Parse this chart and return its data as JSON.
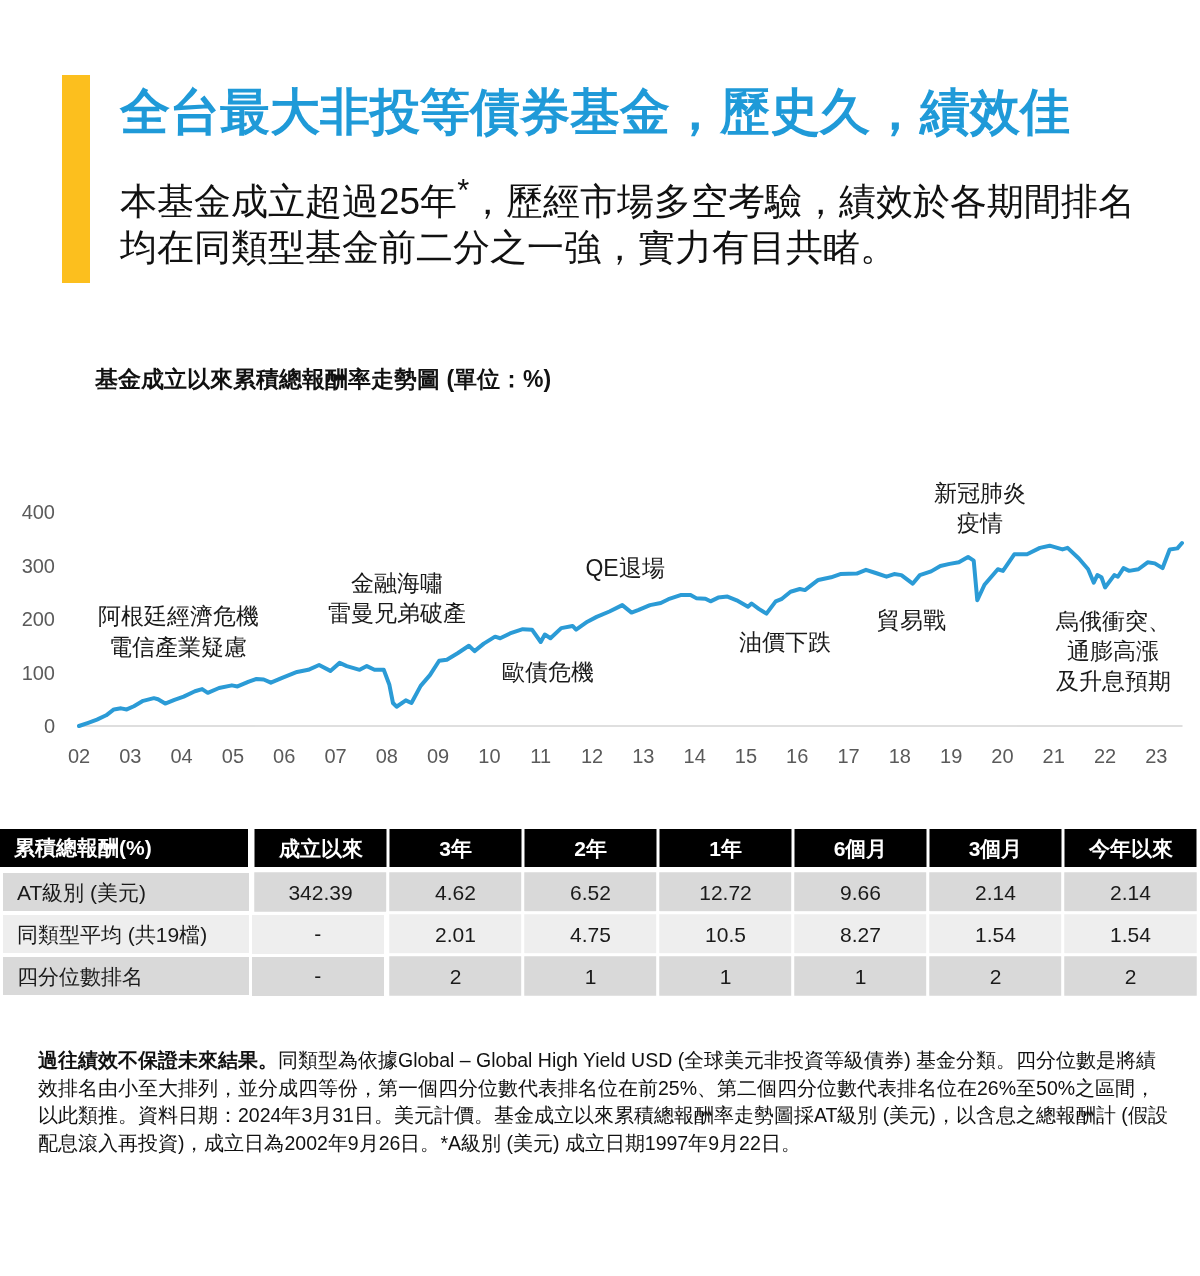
{
  "chart_data": [
    {
      "type": "other",
      "title": "全台最大非投等債券基金，歷史久，績效佳",
      "subtitle": "本基金成立超過25年$^{*}$，歷經市場多空考驗，績效於各期間排名均在同類型基金前二分之一強，實力有目共睹。"
    },
    {
      "type": "line",
      "title": "基金成立以來累積總報酬率走勢圖 (單位：%)",
      "color": "#2b9bd6",
      "x": [
        2002.0,
        2002.18,
        2002.35,
        2002.53,
        2002.68,
        2002.82,
        2002.93,
        2003.07,
        2003.25,
        2003.46,
        2003.54,
        2003.68,
        2003.86,
        2004.04,
        2004.26,
        2004.4,
        2004.51,
        2004.73,
        2004.98,
        2005.09,
        2005.31,
        2005.46,
        2005.6,
        2005.74,
        2005.96,
        2006.25,
        2006.47,
        2006.68,
        2006.9,
        2007.08,
        2007.22,
        2007.47,
        2007.61,
        2007.76,
        2007.94,
        2008.05,
        2008.12,
        2008.19,
        2008.37,
        2008.48,
        2008.66,
        2008.84,
        2009.02,
        2009.17,
        2009.38,
        2009.6,
        2009.71,
        2009.89,
        2010.11,
        2010.21,
        2010.4,
        2010.65,
        2010.83,
        2011.0,
        2011.08,
        2011.19,
        2011.4,
        2011.62,
        2011.69,
        2011.91,
        2012.09,
        2012.34,
        2012.59,
        2012.77,
        2012.91,
        2013.13,
        2013.34,
        2013.49,
        2013.74,
        2013.92,
        2014.03,
        2014.21,
        2014.31,
        2014.46,
        2014.64,
        2014.82,
        2015.04,
        2015.11,
        2015.25,
        2015.4,
        2015.58,
        2015.69,
        2015.87,
        2016.05,
        2016.15,
        2016.41,
        2016.66,
        2016.84,
        2017.16,
        2017.34,
        2017.53,
        2017.74,
        2017.89,
        2018.03,
        2018.25,
        2018.39,
        2018.61,
        2018.79,
        2018.97,
        2019.15,
        2019.33,
        2019.44,
        2019.51,
        2019.65,
        2019.91,
        2020.01,
        2020.23,
        2020.48,
        2020.73,
        2020.92,
        2021.17,
        2021.27,
        2021.49,
        2021.67,
        2021.78,
        2021.85,
        2021.93,
        2022.0,
        2022.18,
        2022.25,
        2022.36,
        2022.47,
        2022.65,
        2022.83,
        2022.97,
        2023.12,
        2023.26,
        2023.41,
        2023.5
      ],
      "values": [
        0,
        6,
        12,
        20,
        31,
        33,
        31,
        37,
        47,
        52,
        50,
        42,
        49,
        55,
        65,
        69,
        62,
        71,
        76,
        74,
        83,
        88,
        87,
        81,
        90,
        101,
        105,
        114,
        103,
        118,
        112,
        105,
        112,
        105,
        105,
        77,
        43,
        36,
        48,
        43,
        75,
        95,
        122,
        124,
        136,
        150,
        140,
        154,
        167,
        164,
        173,
        181,
        180,
        157,
        171,
        164,
        183,
        187,
        180,
        195,
        204,
        214,
        226,
        212,
        217,
        226,
        230,
        237,
        245,
        245,
        239,
        238,
        233,
        240,
        242,
        235,
        223,
        229,
        219,
        210,
        233,
        237,
        251,
        256,
        254,
        273,
        278,
        284,
        285,
        292,
        286,
        279,
        284,
        282,
        266,
        282,
        289,
        299,
        303,
        306,
        316,
        309,
        235,
        264,
        293,
        290,
        321,
        321,
        333,
        337,
        330,
        333,
        313,
        293,
        268,
        282,
        278,
        259,
        282,
        279,
        295,
        290,
        293,
        306,
        304,
        295,
        330,
        332,
        342
      ],
      "xlim": [
        2002,
        2023.5
      ],
      "xticks": [
        {
          "value": 2002,
          "label": "02"
        },
        {
          "value": 2003,
          "label": "03"
        },
        {
          "value": 2004,
          "label": "04"
        },
        {
          "value": 2005,
          "label": "05"
        },
        {
          "value": 2006,
          "label": "06"
        },
        {
          "value": 2007,
          "label": "07"
        },
        {
          "value": 2008,
          "label": "08"
        },
        {
          "value": 2009,
          "label": "09"
        },
        {
          "value": 2010,
          "label": "10"
        },
        {
          "value": 2011,
          "label": "11"
        },
        {
          "value": 2012,
          "label": "12"
        },
        {
          "value": 2013,
          "label": "13"
        },
        {
          "value": 2014,
          "label": "14"
        },
        {
          "value": 2015,
          "label": "15"
        },
        {
          "value": 2016,
          "label": "16"
        },
        {
          "value": 2017,
          "label": "17"
        },
        {
          "value": 2018,
          "label": "18"
        },
        {
          "value": 2019,
          "label": "19"
        },
        {
          "value": 2020,
          "label": "20"
        },
        {
          "value": 2021,
          "label": "21"
        },
        {
          "value": 2022,
          "label": "22"
        },
        {
          "value": 2023,
          "label": "23"
        }
      ],
      "ylim": [
        0,
        400
      ],
      "yticks": [
        0,
        100,
        200,
        300,
        400
      ],
      "annotations": [
        "阿根廷經濟危機",
        "電信產業疑慮",
        "金融海嘯",
        "雷曼兄弟破產",
        "歐債危機",
        "QE退場",
        "油價下跌",
        "貿易戰",
        "新冠肺炎疫情",
        "烏俄衝突、通膨高漲及升息預期"
      ]
    },
    {
      "type": "heatmap",
      "ylabel": "累積總報酬(%)",
      "categories": [
        "成立以來",
        "3年",
        "2年",
        "1年",
        "6個月",
        "3個月",
        "今年以來"
      ],
      "y_categories": [
        "AT級別 (美元)",
        "同類型平均 (共19檔)",
        "四分位數排名"
      ],
      "cells": [
        [
          342.39,
          4.62,
          6.52,
          12.72,
          9.66,
          2.14,
          2.14
        ],
        [
          null,
          2.01,
          4.75,
          10.5,
          8.27,
          1.54,
          1.54
        ],
        [
          null,
          2,
          1,
          1,
          1,
          2,
          2
        ]
      ],
      "cell_labels": [
        [
          "342.39",
          "4.62",
          "6.52",
          "12.72",
          "9.66",
          "2.14",
          "2.14"
        ],
        [
          "-",
          "2.01",
          "4.75",
          "10.5",
          "8.27",
          "1.54",
          "1.54"
        ],
        [
          "-",
          "2",
          "1",
          "1",
          "1",
          "2",
          "2"
        ]
      ],
      "color": "#d9d9d9",
      "data_labels": true,
      "annotations": [
        "過往績效不保證未來結果。同類型為依據Global – Global High Yield USD (全球美元非投資等級債券) 基金分類。四分位數是將績效排名由小至大排列，並分成四等份，第一個四分位數代表排名位在前25%、第二個四分位數代表排名位在26%至50%之區間，以此類推。資料日期：2024年3月31日。美元計價。基金成立以來累積總報酬率走勢圖採AT級別 (美元)，以含息之總報酬計 (假設配息滾入再投資)，成立日為2002年9月26日。*A級別 (美元) 成立日期1997年9月22日。"
      ]
    }
  ]
}
